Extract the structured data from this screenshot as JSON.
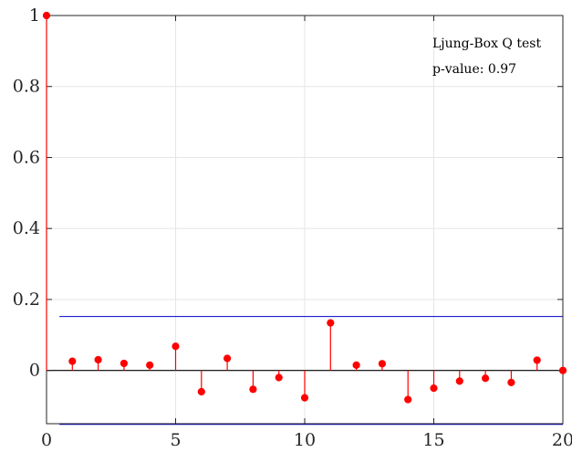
{
  "chart_data": {
    "type": "stem",
    "title": "",
    "xlabel": "",
    "ylabel": "",
    "xlim": [
      0,
      20
    ],
    "ylim": [
      -0.15,
      1
    ],
    "x_ticks": [
      0,
      5,
      10,
      15,
      20
    ],
    "x_tick_labels": [
      "0",
      "5",
      "10",
      "15",
      "20"
    ],
    "y_ticks": [
      0,
      0.2,
      0.4,
      0.6,
      0.8,
      1
    ],
    "y_tick_labels": [
      "0",
      "0.2",
      "0.4",
      "0.6",
      "0.8",
      "1"
    ],
    "grid": true,
    "series": [
      {
        "x": [
          0,
          1,
          2,
          3,
          4,
          5,
          6,
          7,
          8,
          9,
          10,
          11,
          12,
          13,
          14,
          15,
          16,
          17,
          18,
          19,
          20
        ],
        "values": [
          1.0,
          0.026,
          0.03,
          0.02,
          0.015,
          0.068,
          -0.06,
          0.034,
          -0.053,
          -0.02,
          -0.077,
          0.134,
          0.015,
          0.019,
          -0.082,
          -0.05,
          -0.03,
          -0.022,
          -0.034,
          0.029,
          0.0
        ],
        "color": "#ff0000"
      }
    ],
    "confidence_bounds": {
      "upper": 0.152,
      "lower": -0.152,
      "x_start": 0.5,
      "color": "#0000cc"
    },
    "annotations": [
      "Ljung-Box Q test",
      "p-value: 0.97"
    ]
  }
}
